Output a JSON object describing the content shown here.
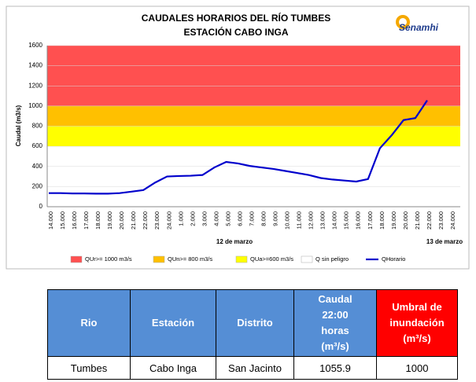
{
  "chart_data": {
    "type": "line",
    "title": "CAUDALES HORARIOS DEL RÍO TUMBES",
    "subtitle": "ESTACIÓN CABO INGA",
    "logo": "Senamhi",
    "ylabel": "Caudal (m3/s)",
    "ylim": [
      0,
      1600
    ],
    "yticks": [
      0,
      200,
      400,
      600,
      800,
      1000,
      1200,
      1400,
      1600
    ],
    "categories": [
      "14.000",
      "15.000",
      "16.000",
      "17.000",
      "18.000",
      "19.000",
      "20.000",
      "21.000",
      "22.000",
      "23.000",
      "24.000",
      "1.000",
      "2.000",
      "3.000",
      "4.000",
      "5.000",
      "6.000",
      "7.000",
      "8.000",
      "9.000",
      "10.000",
      "11.000",
      "12.000",
      "13.000",
      "14.000",
      "15.000",
      "16.000",
      "17.000",
      "18.000",
      "19.000",
      "20.000",
      "21.000",
      "22.000",
      "23.000",
      "24.000"
    ],
    "date_labels": [
      "12 de marzo",
      "13 de marzo"
    ],
    "bands": [
      {
        "name": "QUr>= 1000 m3/s",
        "from": 1000,
        "to": 1600,
        "color": "#ff5050"
      },
      {
        "name": "QUn>= 800 m3/s",
        "from": 800,
        "to": 1000,
        "color": "#ffc000"
      },
      {
        "name": "QUa>=600 m3/s",
        "from": 600,
        "to": 800,
        "color": "#ffff00"
      },
      {
        "name": "Q sin peligro",
        "from": 0,
        "to": 600,
        "color": "#ffffff"
      }
    ],
    "series": [
      {
        "name": "QHorario",
        "color": "#0000cc",
        "values": [
          135,
          135,
          132,
          132,
          130,
          130,
          135,
          150,
          165,
          240,
          300,
          305,
          308,
          315,
          390,
          445,
          430,
          405,
          390,
          375,
          355,
          335,
          315,
          285,
          270,
          260,
          250,
          275,
          580,
          710,
          860,
          880,
          1055.9,
          null,
          null
        ]
      }
    ]
  },
  "table": {
    "headers": [
      [
        "Rio"
      ],
      [
        "Estación"
      ],
      [
        "Distrito"
      ],
      [
        "Caudal",
        "22:00",
        "horas",
        "(m³/s)"
      ],
      [
        "Umbral de",
        "inundación",
        "(m³/s)"
      ]
    ],
    "rows": [
      [
        "Tumbes",
        "Cabo Inga",
        "San Jacinto",
        "1055.9",
        "1000"
      ]
    ]
  }
}
